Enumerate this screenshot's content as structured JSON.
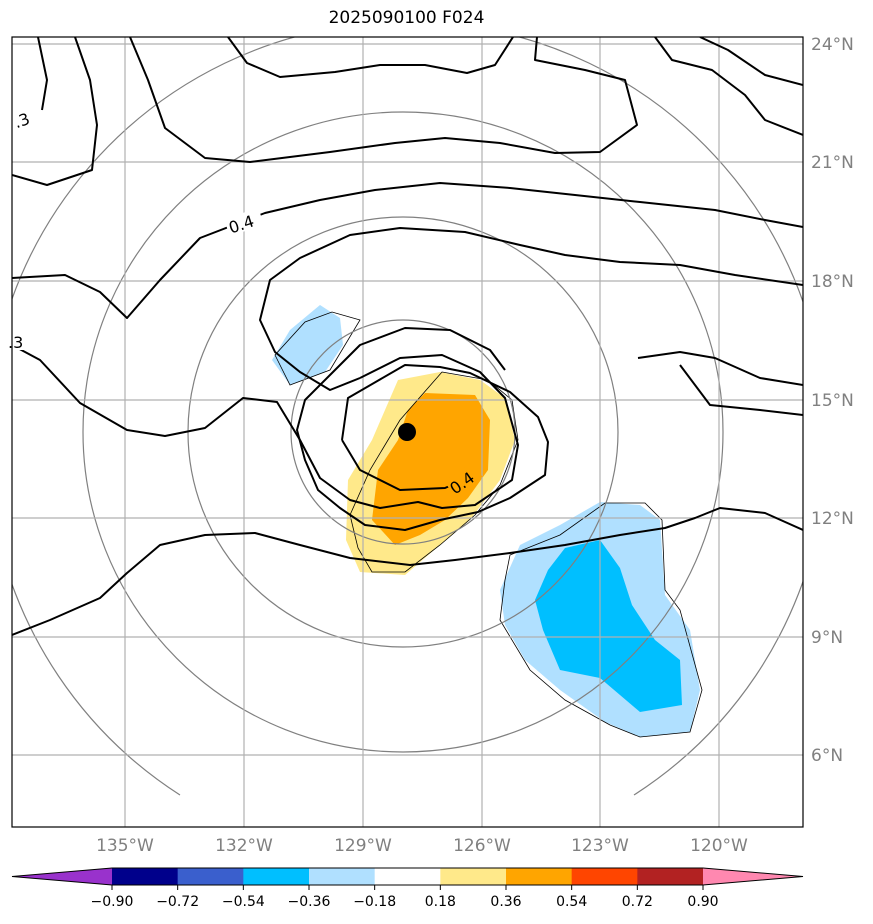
{
  "title": "2025090100 F024",
  "longitude_labels": [
    "135°W",
    "132°W",
    "129°W",
    "126°W",
    "123°W",
    "120°W"
  ],
  "latitude_labels": [
    "24°N",
    "21°N",
    "18°N",
    "15°N",
    "12°N",
    "9°N",
    "6°N"
  ],
  "contour_labels": [
    ".3",
    "0.4",
    ".3",
    "0.4"
  ],
  "colorbar": {
    "tick_labels": [
      "−0.90",
      "−0.72",
      "−0.54",
      "−0.36",
      "−0.18",
      "0.18",
      "0.36",
      "0.54",
      "0.72",
      "0.90"
    ],
    "colors": [
      "#9932cc",
      "#00008b",
      "#3a5fcd",
      "#00bfff",
      "#b0e0ff",
      "#ffffff",
      "#ffe98a",
      "#ffa500",
      "#ff4500",
      "#b22222",
      "#ff88b0"
    ]
  },
  "colors": {
    "contour": "#000000",
    "range_rings": "#808080",
    "gridlines": "#b0b0b0",
    "positive_light": "#ffe98a",
    "positive_mid": "#ffa500",
    "negative_light": "#b0e0ff",
    "negative_mid": "#00bfff"
  }
}
